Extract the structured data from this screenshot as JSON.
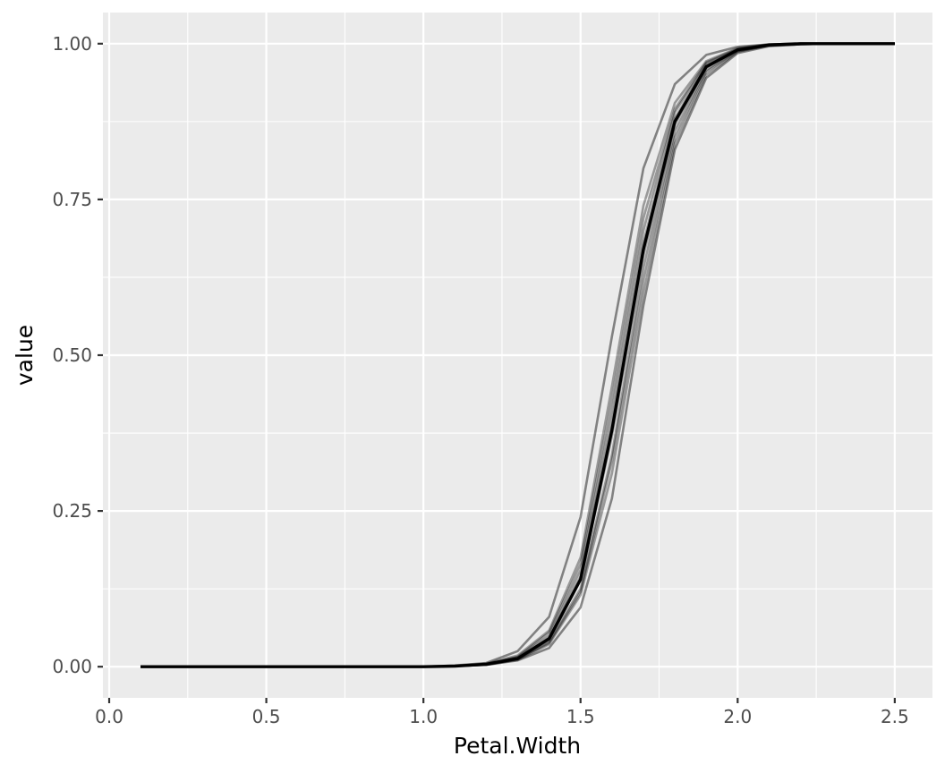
{
  "chart_data": {
    "type": "line",
    "title": "",
    "xlabel": "Petal.Width",
    "ylabel": "value",
    "xlim": [
      -0.02,
      2.62
    ],
    "ylim": [
      -0.05,
      1.05
    ],
    "x_ticks": [
      0.0,
      0.5,
      1.0,
      1.5,
      2.0,
      2.5
    ],
    "x_tick_labels": [
      "0.0",
      "0.5",
      "1.0",
      "1.5",
      "2.0",
      "2.5"
    ],
    "y_ticks": [
      0.0,
      0.25,
      0.5,
      0.75,
      1.0
    ],
    "y_tick_labels": [
      "0.00",
      "0.25",
      "0.50",
      "0.75",
      "1.00"
    ],
    "grid": true,
    "legend": "none",
    "colors": {
      "panel_bg": "#ebebeb",
      "grid": "#ffffff",
      "line": "#000000",
      "tick_text": "#4d4d4d"
    },
    "x": [
      0.1,
      0.2,
      0.3,
      0.4,
      0.5,
      0.6,
      0.7,
      0.8,
      0.9,
      1.0,
      1.1,
      1.2,
      1.3,
      1.4,
      1.5,
      1.6,
      1.7,
      1.8,
      1.9,
      2.0,
      2.1,
      2.2,
      2.3,
      2.4,
      2.5
    ],
    "series": [
      {
        "opacity": 0.45,
        "values": [
          0,
          0,
          0,
          0,
          0,
          0,
          0,
          0,
          0,
          0,
          0.002,
          0.006,
          0.025,
          0.08,
          0.24,
          0.53,
          0.8,
          0.935,
          0.982,
          0.995,
          0.999,
          1,
          1,
          1,
          1
        ]
      },
      {
        "opacity": 0.45,
        "values": [
          0,
          0,
          0,
          0,
          0,
          0,
          0,
          0,
          0,
          0,
          0.001,
          0.003,
          0.01,
          0.03,
          0.095,
          0.27,
          0.58,
          0.83,
          0.945,
          0.985,
          0.996,
          0.999,
          1,
          1,
          1
        ]
      },
      {
        "opacity": 0.35,
        "values": [
          0,
          0,
          0,
          0,
          0,
          0,
          0,
          0,
          0,
          0,
          0.001,
          0.004,
          0.015,
          0.05,
          0.155,
          0.41,
          0.7,
          0.89,
          0.968,
          0.991,
          0.998,
          1,
          1,
          1,
          1
        ]
      },
      {
        "opacity": 0.35,
        "values": [
          0,
          0,
          0,
          0,
          0,
          0,
          0,
          0,
          0,
          0,
          0.001,
          0.003,
          0.012,
          0.04,
          0.125,
          0.34,
          0.64,
          0.86,
          0.958,
          0.989,
          0.997,
          0.999,
          1,
          1,
          1
        ]
      },
      {
        "opacity": 0.35,
        "values": [
          0,
          0,
          0,
          0,
          0,
          0,
          0,
          0,
          0,
          0,
          0.001,
          0.004,
          0.014,
          0.046,
          0.145,
          0.39,
          0.68,
          0.88,
          0.965,
          0.99,
          0.998,
          1,
          1,
          1,
          1
        ]
      },
      {
        "opacity": 0.35,
        "values": [
          0,
          0,
          0,
          0,
          0,
          0,
          0,
          0,
          0,
          0,
          0.001,
          0.004,
          0.016,
          0.055,
          0.165,
          0.43,
          0.72,
          0.895,
          0.97,
          0.992,
          0.998,
          1,
          1,
          1,
          1
        ]
      },
      {
        "opacity": 0.35,
        "values": [
          0,
          0,
          0,
          0,
          0,
          0,
          0,
          0,
          0,
          0,
          0.001,
          0.003,
          0.011,
          0.036,
          0.115,
          0.31,
          0.6,
          0.84,
          0.95,
          0.987,
          0.997,
          0.999,
          1,
          1,
          1
        ]
      },
      {
        "opacity": 0.35,
        "values": [
          0,
          0,
          0,
          0,
          0,
          0,
          0,
          0,
          0,
          0,
          0.001,
          0.004,
          0.013,
          0.043,
          0.14,
          0.37,
          0.66,
          0.87,
          0.962,
          0.99,
          0.998,
          1,
          1,
          1,
          1
        ]
      },
      {
        "opacity": 0.35,
        "values": [
          0,
          0,
          0,
          0,
          0,
          0,
          0,
          0,
          0,
          0,
          0.001,
          0.005,
          0.018,
          0.058,
          0.175,
          0.45,
          0.74,
          0.905,
          0.972,
          0.993,
          0.999,
          1,
          1,
          1,
          1
        ]
      },
      {
        "opacity": 0.35,
        "values": [
          0,
          0,
          0,
          0,
          0,
          0,
          0,
          0,
          0,
          0,
          0.001,
          0.004,
          0.012,
          0.038,
          0.12,
          0.33,
          0.62,
          0.85,
          0.955,
          0.988,
          0.997,
          0.999,
          1,
          1,
          1
        ]
      },
      {
        "opacity": 1.0,
        "values": [
          0,
          0,
          0,
          0,
          0,
          0,
          0,
          0,
          0,
          0,
          0.001,
          0.004,
          0.013,
          0.045,
          0.14,
          0.38,
          0.67,
          0.875,
          0.963,
          0.99,
          0.998,
          1,
          1,
          1,
          1
        ]
      }
    ]
  }
}
